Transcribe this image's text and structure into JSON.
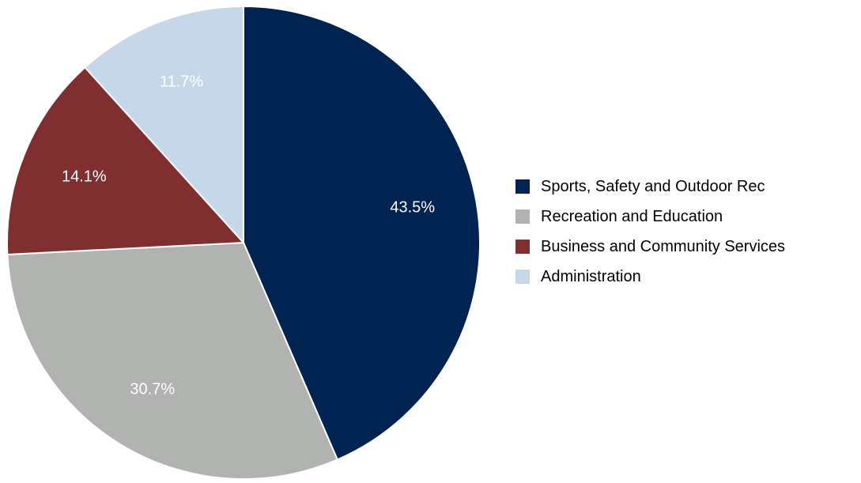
{
  "chart_data": {
    "type": "pie",
    "categories": [
      "Sports, Safety and Outdoor Rec",
      "Recreation and Education",
      "Business and Community Services",
      "Administration"
    ],
    "values": [
      43.5,
      30.7,
      14.1,
      11.7
    ],
    "labels": [
      "43.5%",
      "30.7%",
      "14.1%",
      "11.7%"
    ],
    "colors": [
      "#002351",
      "#b1b3b0",
      "#7f2f2f",
      "#c7d7ea"
    ],
    "start_angle": "12 o'clock",
    "direction": "clockwise",
    "legend_position": "right"
  }
}
